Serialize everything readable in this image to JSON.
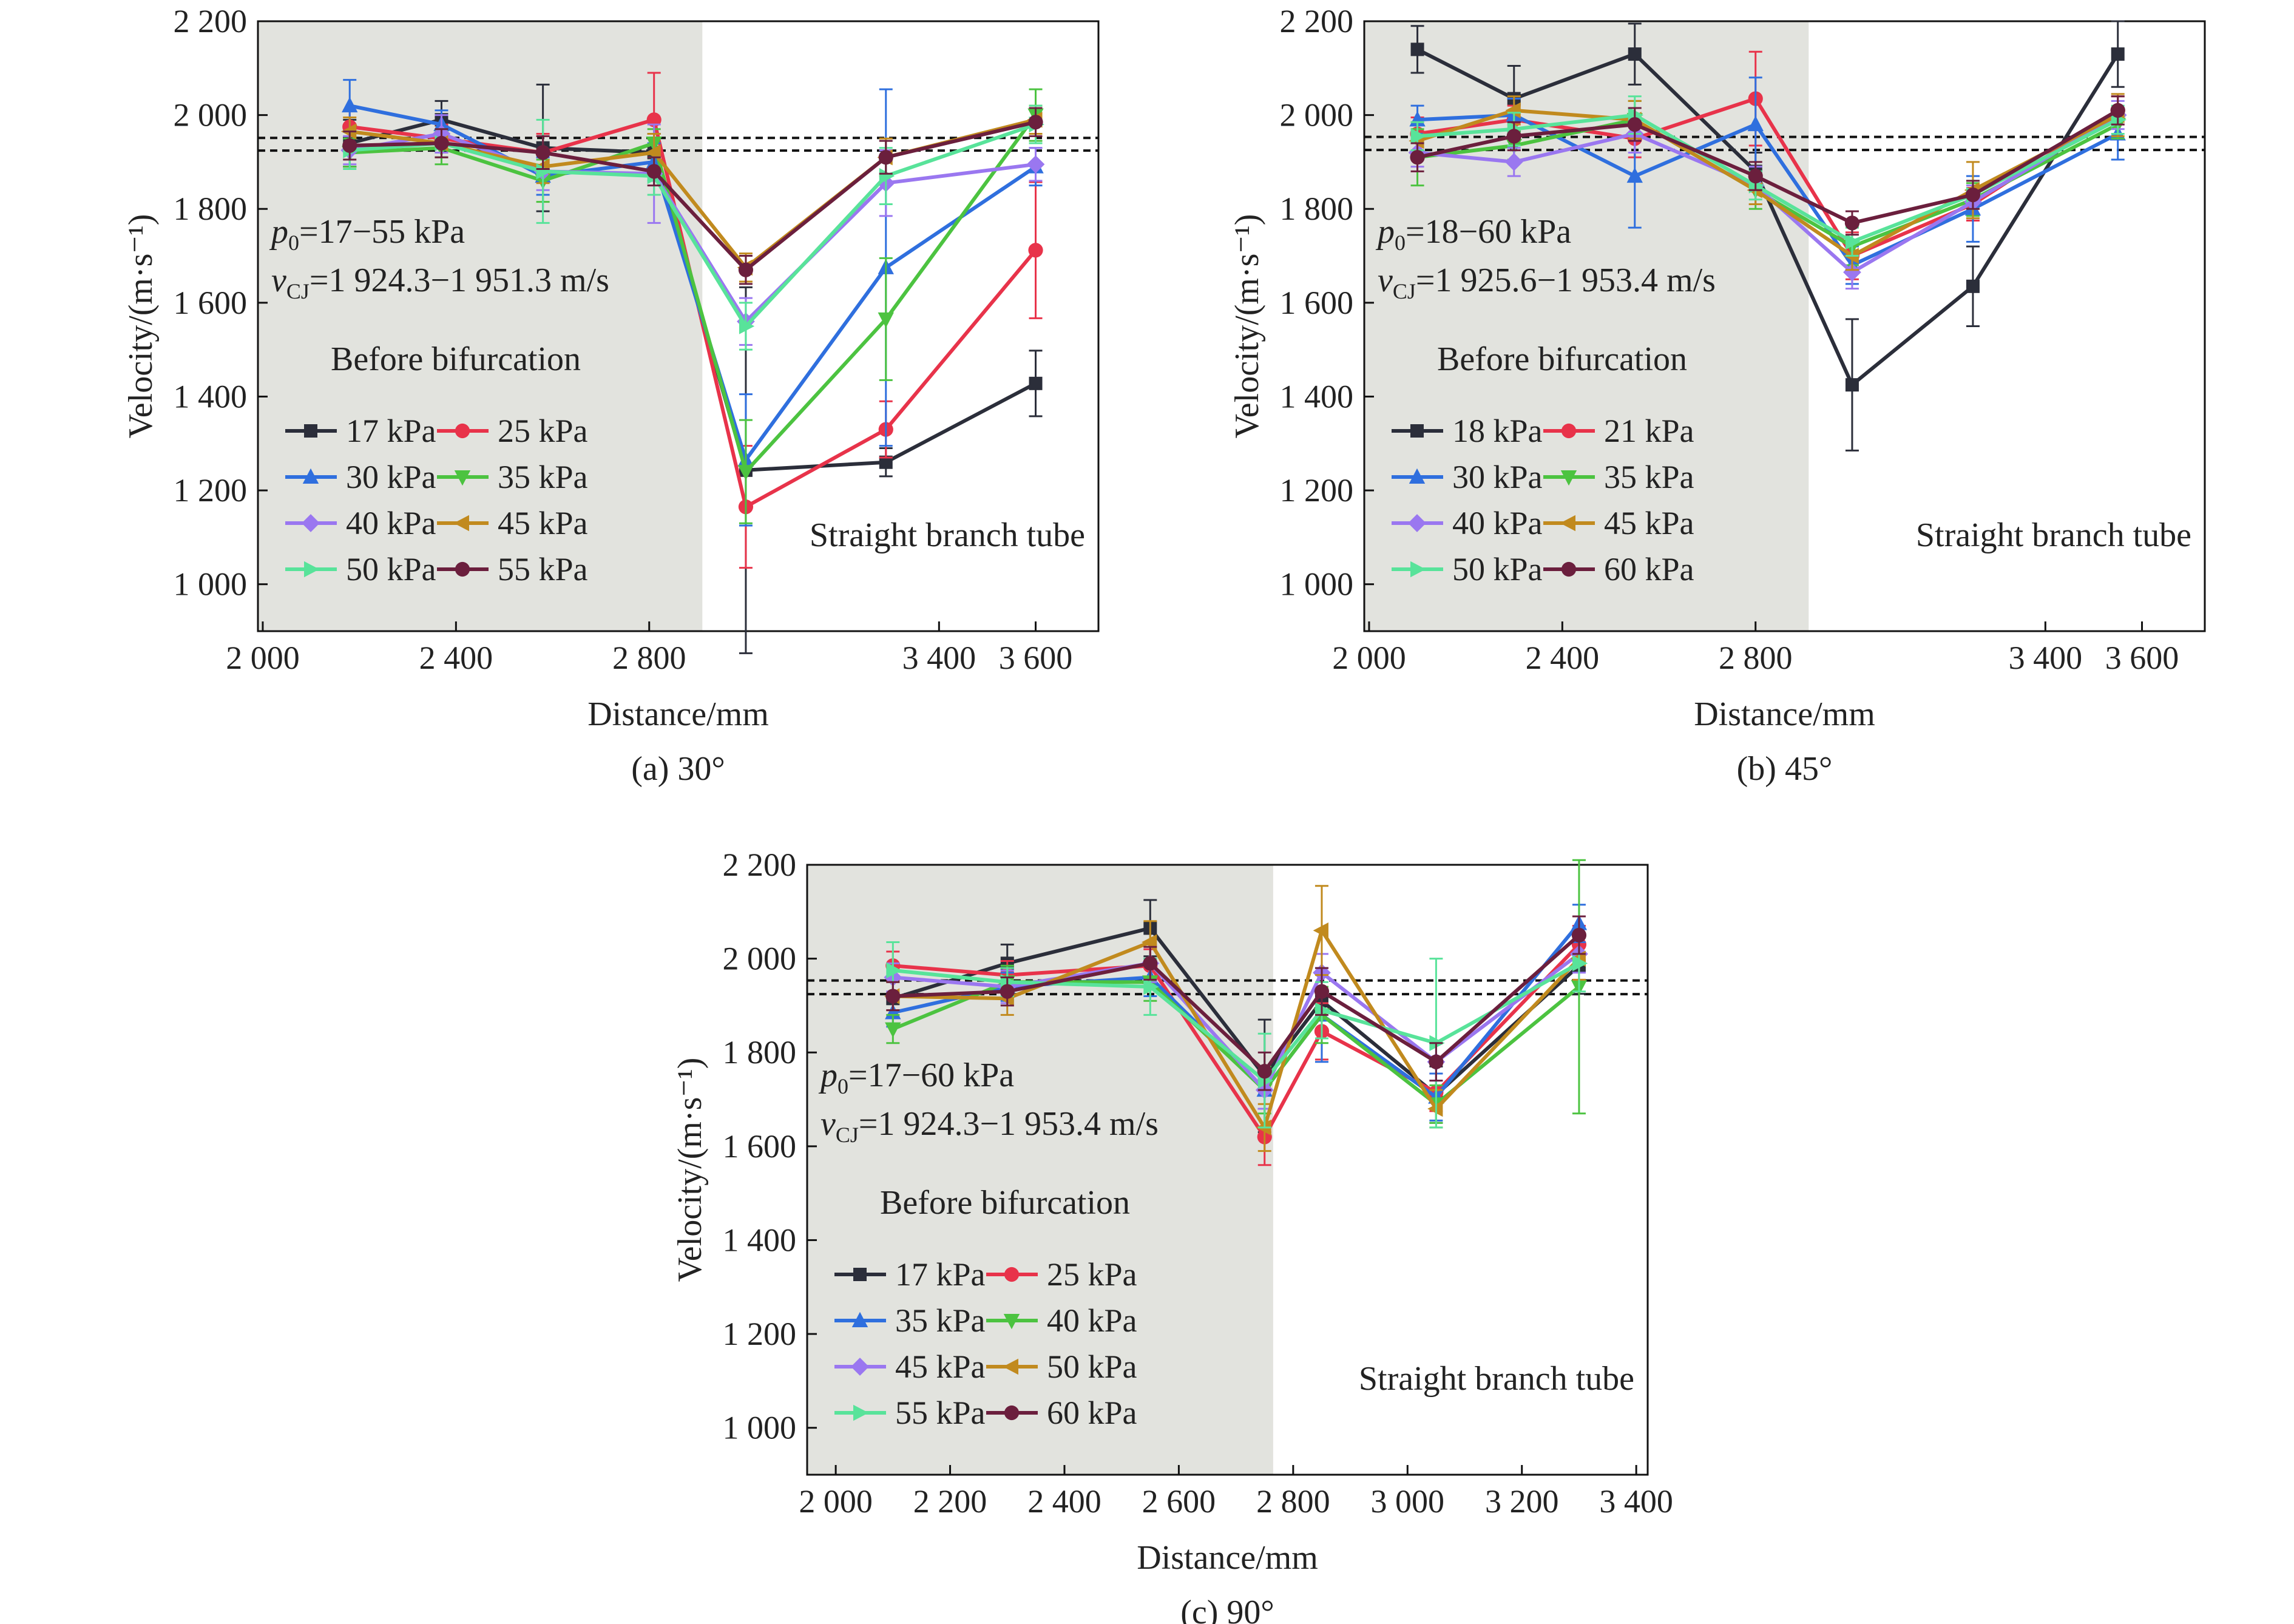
{
  "chart_data": [
    {
      "type": "line",
      "caption": "(a) 30°",
      "xlabel": "Distance/mm",
      "ylabel": "Velocity/(m·s⁻¹)",
      "xlim": [
        1990,
        3730
      ],
      "ylim": [
        900,
        2200
      ],
      "xticks": [
        2000,
        2400,
        2800,
        3400,
        3600
      ],
      "xtick_labels": [
        "2 000",
        "2 400",
        "2 800",
        "3 400",
        "3 600"
      ],
      "yticks": [
        1000,
        1200,
        1400,
        1600,
        1800,
        2000,
        2200
      ],
      "ytick_labels": [
        "1 000",
        "1 200",
        "1 400",
        "1 600",
        "1 800",
        "2 000",
        "2 200"
      ],
      "shaded_region": [
        1990,
        2910
      ],
      "reference_lines": [
        1924.3,
        1951.3
      ],
      "annotations": {
        "p0_symbol": "p",
        "p0_sub": "0",
        "p0_value": "=17−55 kPa",
        "vcj_symbol": "v",
        "vcj_sub": "CJ",
        "vcj_value": "=1 924.3−1 951.3 m/s",
        "before": "Before bifurcation",
        "after": "Straight branch tube"
      },
      "x": [
        2180,
        2370,
        2580,
        2810,
        3000,
        3290,
        3600
      ],
      "series": [
        {
          "name": "17 kPa",
          "color": "#2b2e3a",
          "marker": "square",
          "values": [
            1940,
            1990,
            1930,
            1920,
            1243,
            1260,
            1428
          ],
          "errors": [
            50,
            40,
            135,
            40,
            390,
            30,
            70
          ]
        },
        {
          "name": "25 kPa",
          "color": "#e8334a",
          "marker": "circle",
          "values": [
            1975,
            1950,
            1920,
            1990,
            1165,
            1330,
            1712
          ],
          "errors": [
            35,
            30,
            40,
            100,
            130,
            60,
            145
          ]
        },
        {
          "name": "30 kPa",
          "color": "#2f6fde",
          "marker": "triangle-up",
          "values": [
            2020,
            1980,
            1870,
            1900,
            1265,
            1675,
            1890
          ],
          "errors": [
            55,
            30,
            40,
            40,
            140,
            380,
            40
          ]
        },
        {
          "name": "35 kPa",
          "color": "#4cc340",
          "marker": "triangle-down",
          "values": [
            1920,
            1930,
            1860,
            1940,
            1240,
            1565,
            2000
          ],
          "errors": [
            30,
            35,
            45,
            30,
            110,
            130,
            55
          ]
        },
        {
          "name": "40 kPa",
          "color": "#9a77f0",
          "marker": "diamond",
          "values": [
            1925,
            1960,
            1880,
            1875,
            1560,
            1855,
            1895
          ],
          "errors": [
            30,
            40,
            40,
            105,
            50,
            70,
            35
          ]
        },
        {
          "name": "45 kPa",
          "color": "#c18a1e",
          "marker": "triangle-left",
          "values": [
            1965,
            1940,
            1890,
            1920,
            1675,
            1910,
            1990
          ],
          "errors": [
            30,
            30,
            35,
            40,
            30,
            40,
            30
          ]
        },
        {
          "name": "50 kPa",
          "color": "#58e39a",
          "marker": "triangle-right",
          "values": [
            1925,
            1940,
            1880,
            1870,
            1550,
            1870,
            1980
          ],
          "errors": [
            40,
            30,
            110,
            40,
            50,
            60,
            40
          ]
        },
        {
          "name": "55 kPa",
          "color": "#6b1f3d",
          "marker": "circle",
          "values": [
            1935,
            1940,
            1920,
            1880,
            1670,
            1910,
            1985
          ],
          "errors": [
            30,
            30,
            35,
            30,
            30,
            35,
            30
          ]
        }
      ]
    },
    {
      "type": "line",
      "caption": "(b) 45°",
      "xlabel": "Distance/mm",
      "ylabel": "Velocity/(m·s⁻¹)",
      "xlim": [
        1990,
        3730
      ],
      "ylim": [
        900,
        2200
      ],
      "xticks": [
        2000,
        2400,
        2800,
        3400,
        3600
      ],
      "xtick_labels": [
        "2 000",
        "2 400",
        "2 800",
        "3 400",
        "3 600"
      ],
      "yticks": [
        1000,
        1200,
        1400,
        1600,
        1800,
        2000,
        2200
      ],
      "ytick_labels": [
        "1 000",
        "1 200",
        "1 400",
        "1 600",
        "1 800",
        "2 000",
        "2 200"
      ],
      "shaded_region": [
        1990,
        2910
      ],
      "reference_lines": [
        1925.6,
        1953.4
      ],
      "annotations": {
        "p0_symbol": "p",
        "p0_sub": "0",
        "p0_value": "=18−60 kPa",
        "vcj_symbol": "v",
        "vcj_sub": "CJ",
        "vcj_value": "=1 925.6−1 953.4 m/s",
        "before": "Before bifurcation",
        "after": "Straight branch tube"
      },
      "x": [
        2100,
        2300,
        2550,
        2800,
        3000,
        3250,
        3550
      ],
      "series": [
        {
          "name": "18 kPa",
          "color": "#2b2e3a",
          "marker": "square",
          "values": [
            2140,
            2035,
            2130,
            1880,
            1425,
            1635,
            2130
          ],
          "errors": [
            50,
            70,
            65,
            40,
            140,
            85,
            70
          ]
        },
        {
          "name": "21 kPa",
          "color": "#e8334a",
          "marker": "circle",
          "values": [
            1960,
            1990,
            1950,
            2035,
            1700,
            1810,
            2010
          ],
          "errors": [
            35,
            30,
            40,
            100,
            50,
            35,
            30
          ]
        },
        {
          "name": "30 kPa",
          "color": "#2f6fde",
          "marker": "triangle-up",
          "values": [
            1990,
            2000,
            1870,
            1980,
            1680,
            1800,
            1960
          ],
          "errors": [
            30,
            35,
            110,
            100,
            40,
            70,
            55
          ]
        },
        {
          "name": "35 kPa",
          "color": "#4cc340",
          "marker": "triangle-down",
          "values": [
            1910,
            1935,
            1990,
            1840,
            1720,
            1820,
            1980
          ],
          "errors": [
            60,
            30,
            40,
            40,
            40,
            35,
            30
          ]
        },
        {
          "name": "40 kPa",
          "color": "#9a77f0",
          "marker": "diamond",
          "values": [
            1920,
            1900,
            1960,
            1850,
            1665,
            1815,
            2000
          ],
          "errors": [
            30,
            30,
            40,
            40,
            35,
            35,
            30
          ]
        },
        {
          "name": "45 kPa",
          "color": "#c18a1e",
          "marker": "triangle-left",
          "values": [
            1945,
            2010,
            1990,
            1840,
            1700,
            1840,
            2000
          ],
          "errors": [
            40,
            30,
            40,
            30,
            30,
            60,
            45
          ]
        },
        {
          "name": "50 kPa",
          "color": "#58e39a",
          "marker": "triangle-right",
          "values": [
            1955,
            1970,
            2000,
            1850,
            1730,
            1830,
            1990
          ],
          "errors": [
            30,
            35,
            40,
            30,
            30,
            30,
            30
          ]
        },
        {
          "name": "60 kPa",
          "color": "#6b1f3d",
          "marker": "circle",
          "values": [
            1910,
            1955,
            1980,
            1870,
            1770,
            1830,
            2010
          ],
          "errors": [
            30,
            30,
            35,
            30,
            25,
            30,
            30
          ]
        }
      ]
    },
    {
      "type": "line",
      "caption": "(c) 90°",
      "xlabel": "Distance/mm",
      "ylabel": "Velocity/(m·s⁻¹)",
      "xlim": [
        1950,
        3420
      ],
      "ylim": [
        900,
        2200
      ],
      "xticks": [
        2000,
        2200,
        2400,
        2600,
        2800,
        3000,
        3200,
        3400
      ],
      "xtick_labels": [
        "2 000",
        "2 200",
        "2 400",
        "2 600",
        "2 800",
        "3 000",
        "3 200",
        "3 400"
      ],
      "yticks": [
        1000,
        1200,
        1400,
        1600,
        1800,
        2000,
        2200
      ],
      "ytick_labels": [
        "1 000",
        "1 200",
        "1 400",
        "1 600",
        "1 800",
        "2 000",
        "2 200"
      ],
      "shaded_region": [
        1950,
        2765
      ],
      "reference_lines": [
        1924.3,
        1953.4
      ],
      "annotations": {
        "p0_symbol": "p",
        "p0_sub": "0",
        "p0_value": "=17−60 kPa",
        "vcj_symbol": "v",
        "vcj_sub": "CJ",
        "vcj_value": "=1 924.3−1 953.4 m/s",
        "before": "Before bifurcation",
        "after": "Straight branch tube"
      },
      "x": [
        2100,
        2300,
        2550,
        2750,
        2850,
        3050,
        3300
      ],
      "series": [
        {
          "name": "17 kPa",
          "color": "#2b2e3a",
          "marker": "square",
          "values": [
            1915,
            1990,
            2065,
            1750,
            1910,
            1710,
            1985
          ],
          "errors": [
            40,
            40,
            60,
            120,
            60,
            60,
            60
          ]
        },
        {
          "name": "25 kPa",
          "color": "#e8334a",
          "marker": "circle",
          "values": [
            1985,
            1965,
            1985,
            1620,
            1845,
            1715,
            2030
          ],
          "errors": [
            30,
            30,
            35,
            60,
            60,
            40,
            40
          ]
        },
        {
          "name": "35 kPa",
          "color": "#2f6fde",
          "marker": "triangle-up",
          "values": [
            1885,
            1940,
            1960,
            1720,
            1880,
            1705,
            2075
          ],
          "errors": [
            30,
            30,
            40,
            40,
            100,
            50,
            40
          ]
        },
        {
          "name": "40 kPa",
          "color": "#4cc340",
          "marker": "triangle-down",
          "values": [
            1850,
            1950,
            1950,
            1720,
            1880,
            1690,
            1940
          ],
          "errors": [
            30,
            35,
            40,
            50,
            60,
            40,
            270
          ]
        },
        {
          "name": "45 kPa",
          "color": "#9a77f0",
          "marker": "diamond",
          "values": [
            1960,
            1940,
            1990,
            1720,
            1970,
            1780,
            2010
          ],
          "errors": [
            30,
            35,
            40,
            40,
            40,
            40,
            40
          ]
        },
        {
          "name": "50 kPa",
          "color": "#c18a1e",
          "marker": "triangle-left",
          "values": [
            1920,
            1915,
            2035,
            1640,
            2060,
            1680,
            2000
          ],
          "errors": [
            30,
            35,
            45,
            50,
            95,
            40,
            45
          ]
        },
        {
          "name": "55 kPa",
          "color": "#58e39a",
          "marker": "triangle-right",
          "values": [
            1975,
            1950,
            1940,
            1740,
            1890,
            1820,
            1990
          ],
          "errors": [
            60,
            30,
            60,
            100,
            60,
            180,
            60
          ]
        },
        {
          "name": "60 kPa",
          "color": "#6b1f3d",
          "marker": "circle",
          "values": [
            1920,
            1930,
            1990,
            1760,
            1930,
            1780,
            2050
          ],
          "errors": [
            30,
            30,
            35,
            40,
            50,
            40,
            40
          ]
        }
      ]
    }
  ]
}
